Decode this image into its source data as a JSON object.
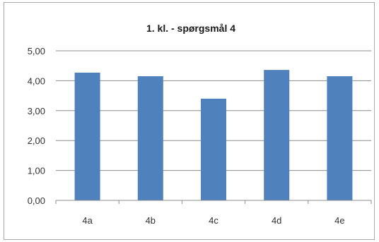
{
  "chart_data": {
    "type": "bar",
    "title": "1. kl. - spørgsmål 4",
    "categories": [
      "4a",
      "4b",
      "4c",
      "4d",
      "4e"
    ],
    "values": [
      4.27,
      4.15,
      3.4,
      4.36,
      4.15
    ],
    "ylim": [
      0,
      5
    ],
    "yticks": [
      "0,00",
      "1,00",
      "2,00",
      "3,00",
      "4,00",
      "5,00"
    ],
    "grid": true,
    "xlabel": "",
    "ylabel": "",
    "bar_color": "#4f81bd",
    "grid_color": "#8c8c8c"
  }
}
